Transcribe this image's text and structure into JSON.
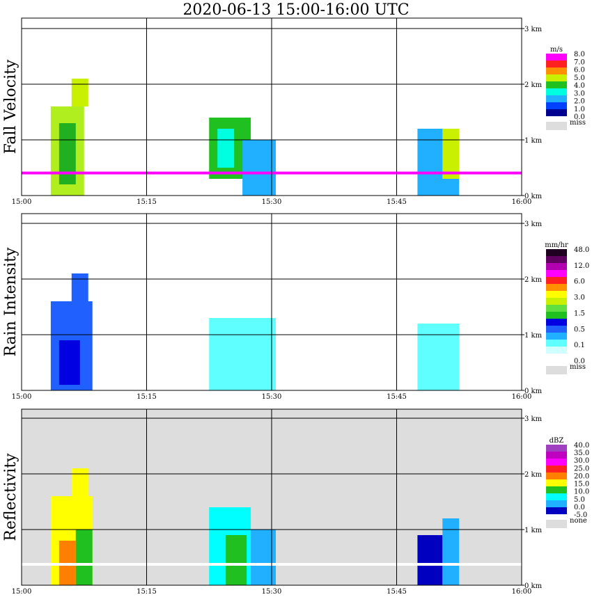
{
  "title": "2020-06-13   15:00-16:00 UTC",
  "x_ticks": [
    "15:00",
    "15:15",
    "15:30",
    "15:45",
    "16:00"
  ],
  "y_ticks": [
    "0 km",
    "1 km",
    "2 km",
    "3 km"
  ],
  "chart_data": [
    {
      "type": "heatmap",
      "ylabel": "Fall Velocity",
      "colorbar_unit": "m/s",
      "colorbar_labels": [
        "8.0",
        "7.0",
        "6.0",
        "5.0",
        "4.0",
        "3.0",
        "2.0",
        "1.0",
        "0.0",
        "miss"
      ],
      "colorbar_colors": [
        "#ff00ff",
        "#ff2020",
        "#ff9000",
        "#c8f000",
        "#20c020",
        "#00ffe0",
        "#20b0ff",
        "#0040ff",
        "#000090",
        "#dddddd"
      ],
      "background": "#ffffff",
      "x_range": [
        "15:00",
        "16:00"
      ],
      "y_range_km": [
        0,
        3.1
      ],
      "features": [
        {
          "t0": 3.5,
          "t1": 7.5,
          "h0": 0.0,
          "h1": 1.6,
          "fill": "#b0ee20"
        },
        {
          "t0": 4.5,
          "t1": 6.5,
          "h0": 0.2,
          "h1": 1.3,
          "fill": "#20b020"
        },
        {
          "t0": 6.0,
          "t1": 8.0,
          "h0": 1.6,
          "h1": 2.1,
          "fill": "#c8f000"
        },
        {
          "t0": 22.5,
          "t1": 27.5,
          "h0": 0.3,
          "h1": 1.4,
          "fill": "#20c020"
        },
        {
          "t0": 23.5,
          "t1": 25.5,
          "h0": 0.5,
          "h1": 1.2,
          "fill": "#00ffe0"
        },
        {
          "t0": 26.5,
          "t1": 30.5,
          "h0": 0.0,
          "h1": 1.0,
          "fill": "#20b0ff"
        },
        {
          "t0": 47.5,
          "t1": 52.5,
          "h0": 0.0,
          "h1": 1.2,
          "fill": "#20b0ff"
        },
        {
          "t0": 50.5,
          "t1": 52.5,
          "h0": 0.3,
          "h1": 1.2,
          "fill": "#c8f000"
        },
        {
          "t0": 0.0,
          "t1": 60.0,
          "h0": 0.38,
          "h1": 0.43,
          "fill": "#ff00ff"
        }
      ]
    },
    {
      "type": "heatmap",
      "ylabel": "Rain Intensity",
      "colorbar_unit": "mm/hr",
      "colorbar_labels": [
        "48.0",
        "12.0",
        "6.0",
        "3.0",
        "1.5",
        "0.5",
        "0.1",
        "0.0",
        "miss"
      ],
      "colorbar_colors": [
        "#200020",
        "#600060",
        "#b000b0",
        "#ff00ff",
        "#ff2020",
        "#ff9000",
        "#ffff00",
        "#c8f000",
        "#60e040",
        "#20c020",
        "#0000e0",
        "#2060ff",
        "#20b0ff",
        "#60ffff",
        "#d0ffff",
        "#ffffff",
        "#dddddd"
      ],
      "background": "#ffffff",
      "x_range": [
        "15:00",
        "16:00"
      ],
      "y_range_km": [
        0,
        3.1
      ],
      "features": [
        {
          "t0": 3.5,
          "t1": 8.5,
          "h0": 0.0,
          "h1": 1.6,
          "fill": "#2060ff"
        },
        {
          "t0": 4.5,
          "t1": 7.0,
          "h0": 0.1,
          "h1": 0.9,
          "fill": "#0000e0"
        },
        {
          "t0": 6.0,
          "t1": 8.0,
          "h0": 1.6,
          "h1": 2.1,
          "fill": "#2060ff"
        },
        {
          "t0": 22.5,
          "t1": 30.5,
          "h0": 0.0,
          "h1": 1.3,
          "fill": "#60ffff"
        },
        {
          "t0": 47.5,
          "t1": 52.5,
          "h0": 0.0,
          "h1": 1.2,
          "fill": "#60ffff"
        }
      ]
    },
    {
      "type": "heatmap",
      "ylabel": "Reflectivity",
      "colorbar_unit": "dBZ",
      "colorbar_labels": [
        "40.0",
        "35.0",
        "30.0",
        "25.0",
        "20.0",
        "15.0",
        "10.0",
        "5.0",
        "0.0",
        "-5.0",
        "none"
      ],
      "colorbar_colors": [
        "#a040c0",
        "#c000c0",
        "#ff00ff",
        "#ff2020",
        "#ff8000",
        "#ffff00",
        "#20c020",
        "#00ffff",
        "#20b0ff",
        "#0000c0",
        "#dddddd"
      ],
      "background": "#dddddd",
      "x_range": [
        "15:00",
        "16:00"
      ],
      "y_range_km": [
        0,
        3.1
      ],
      "features": [
        {
          "t0": 3.5,
          "t1": 8.5,
          "h0": 0.0,
          "h1": 1.6,
          "fill": "#ffff00"
        },
        {
          "t0": 4.5,
          "t1": 6.5,
          "h0": 0.0,
          "h1": 0.8,
          "fill": "#ff8000"
        },
        {
          "t0": 6.5,
          "t1": 8.5,
          "h0": 0.0,
          "h1": 1.0,
          "fill": "#20c020"
        },
        {
          "t0": 6.0,
          "t1": 8.0,
          "h0": 1.6,
          "h1": 2.1,
          "fill": "#ffff00"
        },
        {
          "t0": 22.5,
          "t1": 27.5,
          "h0": 0.0,
          "h1": 1.4,
          "fill": "#00ffff"
        },
        {
          "t0": 24.5,
          "t1": 27.0,
          "h0": 0.0,
          "h1": 0.9,
          "fill": "#20c020"
        },
        {
          "t0": 27.5,
          "t1": 30.5,
          "h0": 0.0,
          "h1": 1.0,
          "fill": "#20b0ff"
        },
        {
          "t0": 47.5,
          "t1": 50.5,
          "h0": 0.0,
          "h1": 0.9,
          "fill": "#0000c0"
        },
        {
          "t0": 50.5,
          "t1": 52.5,
          "h0": 0.0,
          "h1": 1.2,
          "fill": "#20b0ff"
        },
        {
          "t0": 0.0,
          "t1": 60.0,
          "h0": 0.35,
          "h1": 0.4,
          "fill": "#ffffff"
        }
      ]
    }
  ]
}
